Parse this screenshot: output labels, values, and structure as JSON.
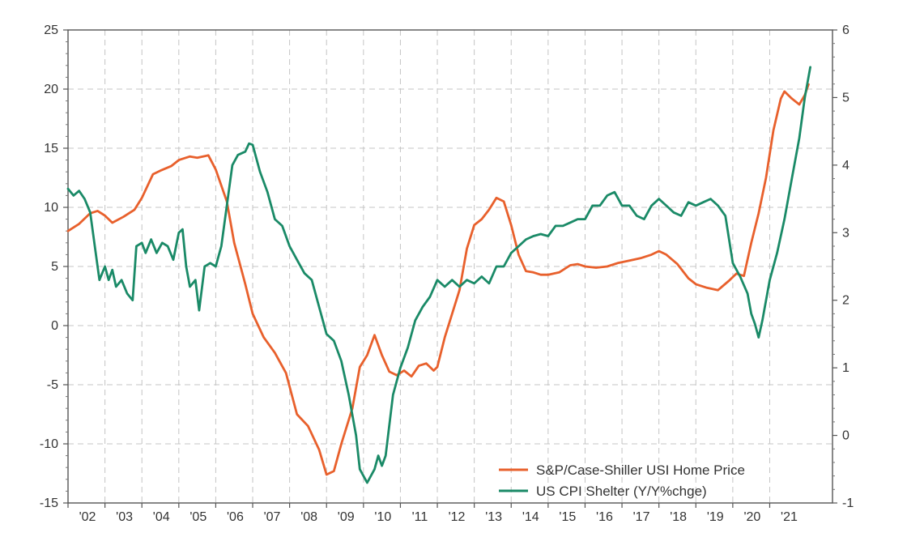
{
  "chart_data": {
    "type": "line",
    "title": "",
    "x_tick_labels": [
      "'02",
      "'03",
      "'04",
      "'05",
      "'06",
      "'07",
      "'08",
      "'09",
      "'10",
      "'11",
      "'12",
      "'13",
      "'14",
      "'15",
      "'16",
      "'17",
      "'18",
      "'19",
      "'20",
      "'21"
    ],
    "y_left": {
      "range": [
        -15,
        25
      ],
      "ticks": [
        "25",
        "20",
        "15",
        "10",
        "5",
        "0",
        "-5",
        "-10",
        "-15"
      ]
    },
    "y_right": {
      "range": [
        -1,
        6
      ],
      "ticks": [
        "6",
        "5",
        "4",
        "3",
        "2",
        "1",
        "0",
        "-1"
      ]
    },
    "grid": true,
    "legend_position": "bottom-right",
    "series": [
      {
        "name": "S&P/Case-Shiller  USI Home  Price",
        "axis": "left",
        "color": "#e8602c",
        "points": [
          [
            2002.0,
            8.0
          ],
          [
            2002.3,
            8.6
          ],
          [
            2002.6,
            9.5
          ],
          [
            2002.8,
            9.7
          ],
          [
            2003.0,
            9.3
          ],
          [
            2003.2,
            8.7
          ],
          [
            2003.5,
            9.2
          ],
          [
            2003.8,
            9.8
          ],
          [
            2004.0,
            10.8
          ],
          [
            2004.3,
            12.8
          ],
          [
            2004.5,
            13.1
          ],
          [
            2004.8,
            13.5
          ],
          [
            2005.0,
            14.0
          ],
          [
            2005.3,
            14.3
          ],
          [
            2005.5,
            14.2
          ],
          [
            2005.8,
            14.4
          ],
          [
            2006.0,
            13.2
          ],
          [
            2006.3,
            10.5
          ],
          [
            2006.5,
            7.0
          ],
          [
            2006.8,
            3.5
          ],
          [
            2007.0,
            1.0
          ],
          [
            2007.3,
            -1.0
          ],
          [
            2007.6,
            -2.3
          ],
          [
            2007.9,
            -4.0
          ],
          [
            2008.2,
            -7.5
          ],
          [
            2008.5,
            -8.5
          ],
          [
            2008.8,
            -10.5
          ],
          [
            2009.0,
            -12.6
          ],
          [
            2009.2,
            -12.3
          ],
          [
            2009.4,
            -10.0
          ],
          [
            2009.7,
            -7.0
          ],
          [
            2009.9,
            -3.5
          ],
          [
            2010.1,
            -2.5
          ],
          [
            2010.3,
            -0.8
          ],
          [
            2010.5,
            -2.5
          ],
          [
            2010.7,
            -3.9
          ],
          [
            2010.9,
            -4.2
          ],
          [
            2011.1,
            -3.8
          ],
          [
            2011.3,
            -4.3
          ],
          [
            2011.5,
            -3.4
          ],
          [
            2011.7,
            -3.2
          ],
          [
            2011.9,
            -3.8
          ],
          [
            2012.0,
            -3.5
          ],
          [
            2012.2,
            -1.0
          ],
          [
            2012.4,
            1.0
          ],
          [
            2012.6,
            3.0
          ],
          [
            2012.8,
            6.5
          ],
          [
            2013.0,
            8.5
          ],
          [
            2013.2,
            9.0
          ],
          [
            2013.4,
            9.8
          ],
          [
            2013.6,
            10.8
          ],
          [
            2013.8,
            10.5
          ],
          [
            2014.0,
            8.5
          ],
          [
            2014.2,
            6.0
          ],
          [
            2014.4,
            4.6
          ],
          [
            2014.6,
            4.5
          ],
          [
            2014.8,
            4.3
          ],
          [
            2015.0,
            4.3
          ],
          [
            2015.3,
            4.5
          ],
          [
            2015.6,
            5.1
          ],
          [
            2015.8,
            5.2
          ],
          [
            2016.0,
            5.0
          ],
          [
            2016.3,
            4.9
          ],
          [
            2016.6,
            5.0
          ],
          [
            2016.9,
            5.3
          ],
          [
            2017.2,
            5.5
          ],
          [
            2017.5,
            5.7
          ],
          [
            2017.8,
            6.0
          ],
          [
            2018.0,
            6.3
          ],
          [
            2018.2,
            6.0
          ],
          [
            2018.5,
            5.2
          ],
          [
            2018.8,
            4.0
          ],
          [
            2019.0,
            3.5
          ],
          [
            2019.3,
            3.2
          ],
          [
            2019.6,
            3.0
          ],
          [
            2019.9,
            3.8
          ],
          [
            2020.1,
            4.4
          ],
          [
            2020.3,
            4.2
          ],
          [
            2020.5,
            7.0
          ],
          [
            2020.7,
            9.5
          ],
          [
            2020.9,
            12.5
          ],
          [
            2021.1,
            16.5
          ],
          [
            2021.3,
            19.2
          ],
          [
            2021.4,
            19.8
          ],
          [
            2021.6,
            19.2
          ],
          [
            2021.8,
            18.7
          ],
          [
            2021.95,
            19.5
          ],
          [
            2022.05,
            20.4
          ]
        ]
      },
      {
        "name": "US CPI Shelter  (Y/Y%chge)",
        "axis": "right",
        "color": "#1a8a67",
        "points": [
          [
            2002.0,
            3.65
          ],
          [
            2002.15,
            3.55
          ],
          [
            2002.3,
            3.62
          ],
          [
            2002.45,
            3.5
          ],
          [
            2002.6,
            3.3
          ],
          [
            2002.75,
            2.7
          ],
          [
            2002.85,
            2.3
          ],
          [
            2003.0,
            2.5
          ],
          [
            2003.1,
            2.3
          ],
          [
            2003.2,
            2.45
          ],
          [
            2003.3,
            2.2
          ],
          [
            2003.45,
            2.3
          ],
          [
            2003.6,
            2.1
          ],
          [
            2003.75,
            2.0
          ],
          [
            2003.85,
            2.8
          ],
          [
            2004.0,
            2.85
          ],
          [
            2004.1,
            2.7
          ],
          [
            2004.25,
            2.9
          ],
          [
            2004.4,
            2.7
          ],
          [
            2004.55,
            2.85
          ],
          [
            2004.7,
            2.8
          ],
          [
            2004.85,
            2.6
          ],
          [
            2005.0,
            3.0
          ],
          [
            2005.1,
            3.05
          ],
          [
            2005.2,
            2.5
          ],
          [
            2005.3,
            2.2
          ],
          [
            2005.45,
            2.3
          ],
          [
            2005.55,
            1.85
          ],
          [
            2005.7,
            2.5
          ],
          [
            2005.85,
            2.55
          ],
          [
            2006.0,
            2.5
          ],
          [
            2006.15,
            2.8
          ],
          [
            2006.3,
            3.4
          ],
          [
            2006.45,
            4.0
          ],
          [
            2006.6,
            4.15
          ],
          [
            2006.8,
            4.2
          ],
          [
            2006.9,
            4.32
          ],
          [
            2007.0,
            4.3
          ],
          [
            2007.2,
            3.9
          ],
          [
            2007.4,
            3.6
          ],
          [
            2007.6,
            3.2
          ],
          [
            2007.8,
            3.1
          ],
          [
            2008.0,
            2.8
          ],
          [
            2008.2,
            2.6
          ],
          [
            2008.4,
            2.4
          ],
          [
            2008.6,
            2.3
          ],
          [
            2008.8,
            1.9
          ],
          [
            2009.0,
            1.5
          ],
          [
            2009.2,
            1.4
          ],
          [
            2009.4,
            1.1
          ],
          [
            2009.6,
            0.6
          ],
          [
            2009.8,
            0.0
          ],
          [
            2009.9,
            -0.5
          ],
          [
            2010.0,
            -0.6
          ],
          [
            2010.1,
            -0.7
          ],
          [
            2010.3,
            -0.5
          ],
          [
            2010.4,
            -0.3
          ],
          [
            2010.5,
            -0.45
          ],
          [
            2010.6,
            -0.3
          ],
          [
            2010.8,
            0.6
          ],
          [
            2011.0,
            1.0
          ],
          [
            2011.2,
            1.3
          ],
          [
            2011.4,
            1.7
          ],
          [
            2011.6,
            1.9
          ],
          [
            2011.8,
            2.05
          ],
          [
            2012.0,
            2.3
          ],
          [
            2012.2,
            2.2
          ],
          [
            2012.4,
            2.3
          ],
          [
            2012.6,
            2.2
          ],
          [
            2012.8,
            2.3
          ],
          [
            2013.0,
            2.25
          ],
          [
            2013.2,
            2.35
          ],
          [
            2013.4,
            2.25
          ],
          [
            2013.6,
            2.5
          ],
          [
            2013.8,
            2.5
          ],
          [
            2014.0,
            2.7
          ],
          [
            2014.2,
            2.8
          ],
          [
            2014.4,
            2.9
          ],
          [
            2014.6,
            2.95
          ],
          [
            2014.8,
            2.98
          ],
          [
            2015.0,
            2.95
          ],
          [
            2015.2,
            3.1
          ],
          [
            2015.4,
            3.1
          ],
          [
            2015.6,
            3.15
          ],
          [
            2015.8,
            3.2
          ],
          [
            2016.0,
            3.2
          ],
          [
            2016.2,
            3.4
          ],
          [
            2016.4,
            3.4
          ],
          [
            2016.6,
            3.55
          ],
          [
            2016.8,
            3.6
          ],
          [
            2017.0,
            3.4
          ],
          [
            2017.2,
            3.4
          ],
          [
            2017.4,
            3.25
          ],
          [
            2017.6,
            3.2
          ],
          [
            2017.8,
            3.4
          ],
          [
            2018.0,
            3.5
          ],
          [
            2018.2,
            3.4
          ],
          [
            2018.4,
            3.3
          ],
          [
            2018.6,
            3.25
          ],
          [
            2018.8,
            3.45
          ],
          [
            2019.0,
            3.4
          ],
          [
            2019.2,
            3.45
          ],
          [
            2019.4,
            3.5
          ],
          [
            2019.6,
            3.4
          ],
          [
            2019.8,
            3.25
          ],
          [
            2020.0,
            2.55
          ],
          [
            2020.2,
            2.35
          ],
          [
            2020.4,
            2.1
          ],
          [
            2020.5,
            1.8
          ],
          [
            2020.6,
            1.65
          ],
          [
            2020.7,
            1.45
          ],
          [
            2020.8,
            1.7
          ],
          [
            2021.0,
            2.3
          ],
          [
            2021.2,
            2.7
          ],
          [
            2021.4,
            3.2
          ],
          [
            2021.6,
            3.8
          ],
          [
            2021.8,
            4.4
          ],
          [
            2021.95,
            5.0
          ],
          [
            2022.1,
            5.45
          ]
        ]
      }
    ]
  }
}
